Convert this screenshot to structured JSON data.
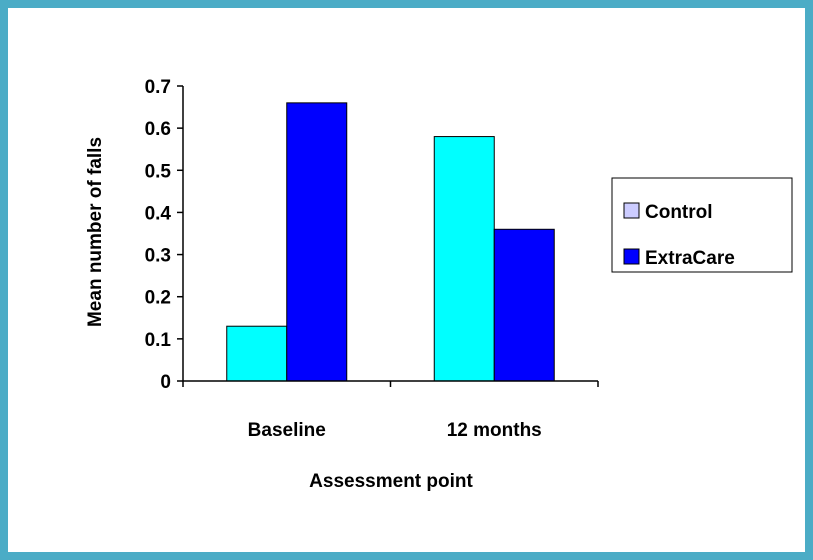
{
  "chart_data": {
    "type": "bar",
    "categories": [
      "Baseline",
      "12 months"
    ],
    "series": [
      {
        "name": "Control",
        "values": [
          0.13,
          0.58
        ],
        "color": "#00ffff",
        "legend_color": "#ccccff"
      },
      {
        "name": "ExtraCare",
        "values": [
          0.66,
          0.36
        ],
        "color": "#0000ff",
        "legend_color": "#0000ff"
      }
    ],
    "xlabel": "Assessment point",
    "ylabel": "Mean number of falls",
    "ylim": [
      0,
      0.7
    ],
    "yticks": [
      "0",
      "0.1",
      "0.2",
      "0.3",
      "0.4",
      "0.5",
      "0.6",
      "0.7"
    ],
    "grid": false,
    "legend_position": "right",
    "frame_color": "#4bacc6"
  }
}
